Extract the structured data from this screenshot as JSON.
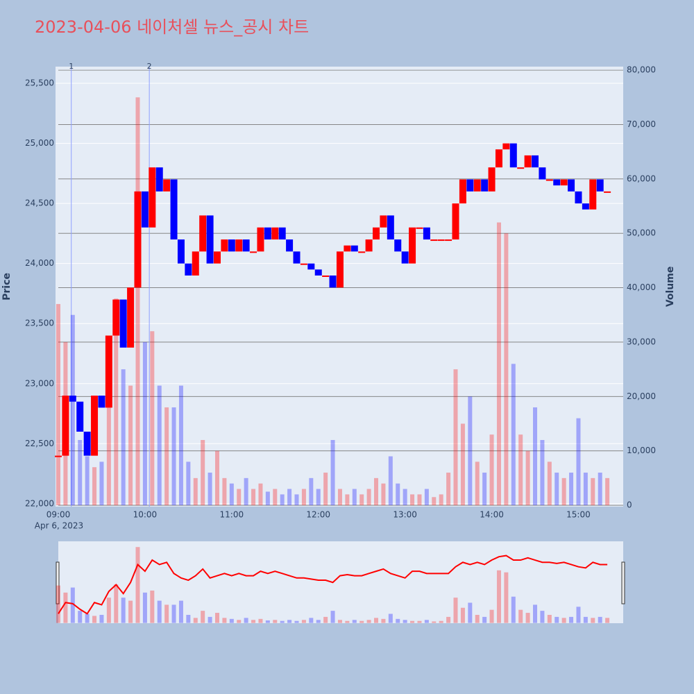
{
  "chart_data": {
    "type": "candlestick",
    "title": "2023-04-06 네이처셀 뉴스_공시 차트",
    "y_title": "Price",
    "y2_title": "Volume",
    "x_date_label": "Apr 6, 2023",
    "up_color": "#ff0000",
    "down_color": "#0000ff",
    "xlim": [
      "09:00",
      "15:31"
    ],
    "xticks": [
      "09:00",
      "10:00",
      "11:00",
      "12:00",
      "13:00",
      "14:00",
      "15:00"
    ],
    "ylim": [
      21976,
      25639
    ],
    "yticks": [
      {
        "value": 22000,
        "label": "22,000"
      },
      {
        "value": 22500,
        "label": "22,500"
      },
      {
        "value": 23000,
        "label": "23,000"
      },
      {
        "value": 23500,
        "label": "23,500"
      },
      {
        "value": 24000,
        "label": "24,000"
      },
      {
        "value": 24500,
        "label": "24,500"
      },
      {
        "value": 25000,
        "label": "25,000"
      },
      {
        "value": 25500,
        "label": "25,500"
      }
    ],
    "y2lim": [
      -250,
      80650
    ],
    "y2ticks": [
      0,
      {
        "value": 10000,
        "label": "10,000"
      },
      {
        "value": 20000,
        "label": "20,000"
      },
      {
        "value": 30000,
        "label": "30,000"
      },
      {
        "value": 40000,
        "label": "40,000"
      },
      {
        "value": 50000,
        "label": "50,000"
      },
      {
        "value": 60000,
        "label": "60,000"
      },
      {
        "value": 70000,
        "label": "70,000"
      },
      {
        "value": 80000,
        "label": "80,000"
      }
    ],
    "annotations": [
      {
        "text": "1",
        "x": "09:09"
      },
      {
        "text": "2",
        "x": "10:03"
      }
    ],
    "x": [
      "09:00",
      "09:05",
      "09:10",
      "09:15",
      "09:20",
      "09:25",
      "09:30",
      "09:35",
      "09:40",
      "09:45",
      "09:50",
      "09:55",
      "10:00",
      "10:05",
      "10:10",
      "10:15",
      "10:20",
      "10:25",
      "10:30",
      "10:35",
      "10:40",
      "10:45",
      "10:50",
      "10:55",
      "11:00",
      "11:05",
      "11:10",
      "11:15",
      "11:20",
      "11:25",
      "11:30",
      "11:35",
      "11:40",
      "11:45",
      "11:50",
      "11:55",
      "12:00",
      "12:05",
      "12:10",
      "12:15",
      "12:20",
      "12:25",
      "12:30",
      "12:35",
      "12:40",
      "12:45",
      "12:50",
      "12:55",
      "13:00",
      "13:05",
      "13:10",
      "13:15",
      "13:20",
      "13:25",
      "13:30",
      "13:35",
      "13:40",
      "13:45",
      "13:50",
      "13:55",
      "14:00",
      "14:05",
      "14:10",
      "14:15",
      "14:20",
      "14:25",
      "14:30",
      "14:35",
      "14:40",
      "14:45",
      "14:50",
      "14:55",
      "15:00",
      "15:05",
      "15:10",
      "15:15",
      "15:20"
    ],
    "series": [
      {
        "name": "Price",
        "values": [
          22400,
          22900,
          22850,
          22600,
          22400,
          22900,
          22800,
          23400,
          23700,
          23300,
          23800,
          24600,
          24300,
          24800,
          24600,
          24700,
          24200,
          24000,
          23900,
          24100,
          24400,
          24000,
          24100,
          24200,
          24100,
          24200,
          24100,
          24100,
          24300,
          24200,
          24300,
          24200,
          24100,
          24000,
          24000,
          23950,
          23900,
          23900,
          23800,
          24100,
          24150,
          24100,
          24100,
          24200,
          24300,
          24400,
          24200,
          24100,
          24000,
          24300,
          24300,
          24200,
          24200,
          24200,
          24200,
          24500,
          24700,
          24600,
          24700,
          24600,
          24800,
          24950,
          25000,
          24800,
          24800,
          24900,
          24800,
          24700,
          24700,
          24650,
          24700,
          24600,
          24500,
          24450,
          24700,
          24600,
          24600
        ]
      },
      {
        "name": "Volume",
        "axis": "y2",
        "values": [
          37000,
          30000,
          35000,
          12000,
          9000,
          7000,
          8000,
          25000,
          38000,
          25000,
          22000,
          75000,
          30000,
          32000,
          22000,
          18000,
          18000,
          22000,
          8000,
          5000,
          12000,
          6000,
          10000,
          5000,
          4000,
          3000,
          5000,
          3000,
          4000,
          2500,
          3000,
          2000,
          3000,
          2000,
          3000,
          5000,
          3000,
          6000,
          12000,
          3000,
          2000,
          3000,
          2000,
          3000,
          5000,
          4000,
          9000,
          4000,
          3000,
          2000,
          2000,
          3000,
          1500,
          2000,
          6000,
          25000,
          15000,
          20000,
          8000,
          6000,
          13000,
          52000,
          50000,
          26000,
          13000,
          10000,
          18000,
          12000,
          8000,
          6000,
          5000,
          6000,
          16000,
          6000,
          5000,
          6000,
          5000
        ]
      }
    ]
  }
}
